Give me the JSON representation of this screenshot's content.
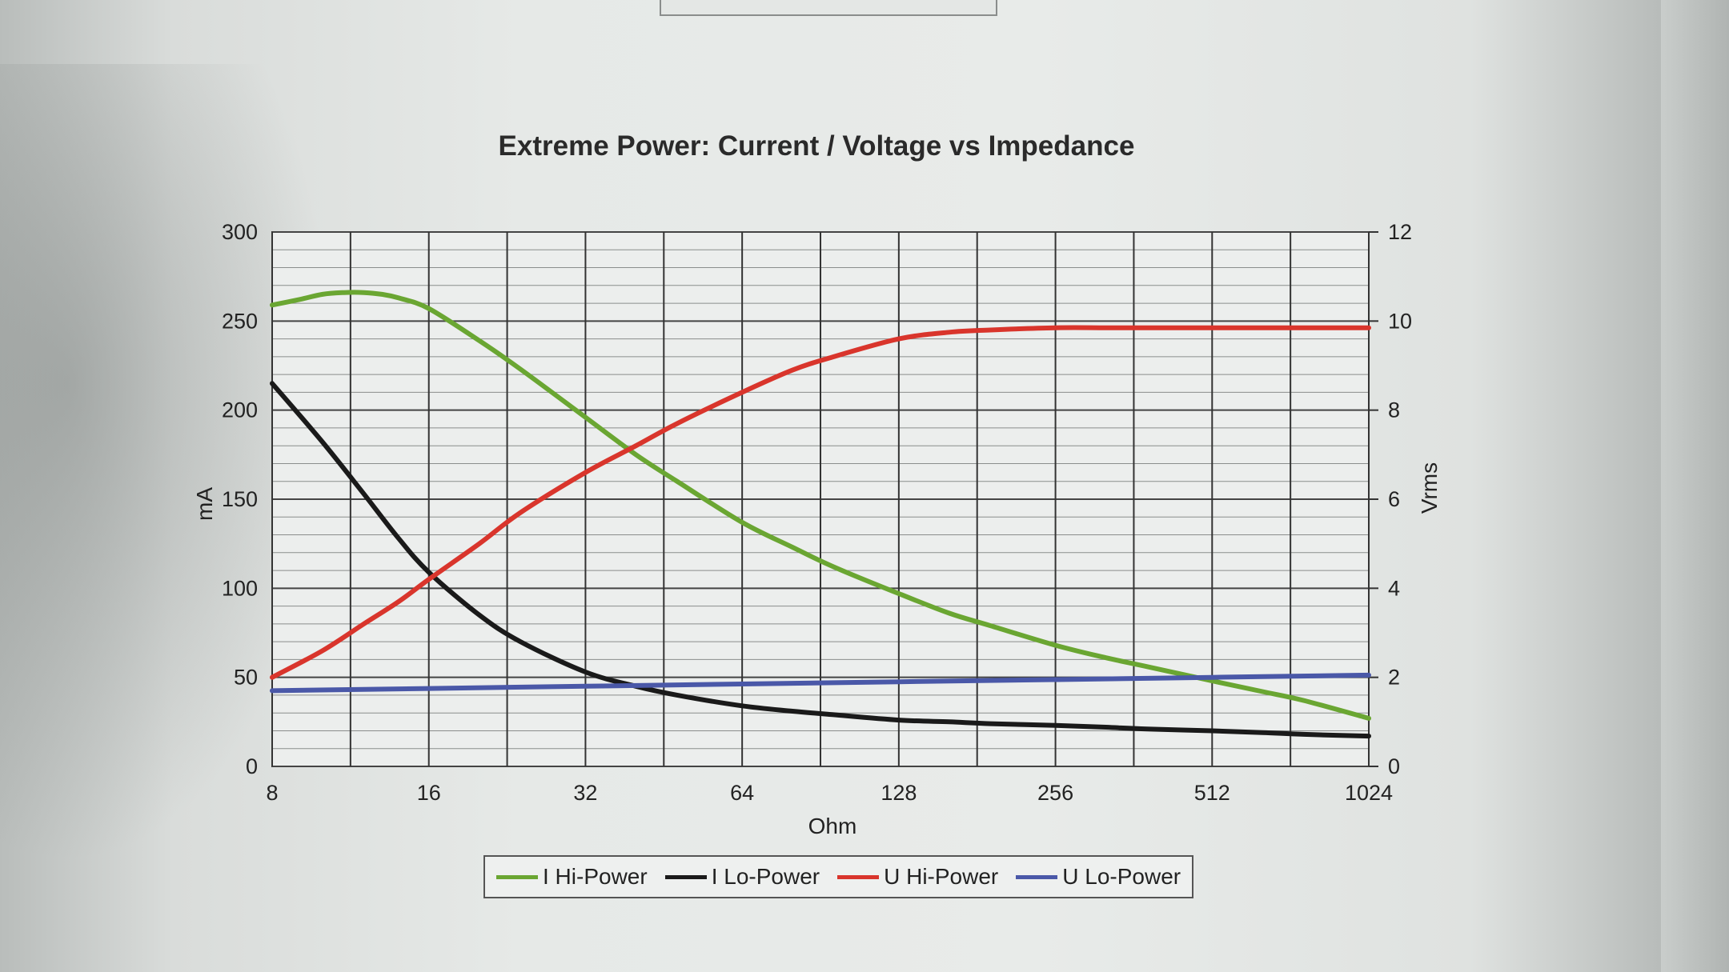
{
  "chart_data": {
    "type": "line",
    "title": "Extreme Power: Current / Voltage vs Impedance",
    "xlabel": "Ohm",
    "ylabel": "mA",
    "y2label": "Vrms",
    "x_scale": "log2",
    "x_ticks": [
      8,
      16,
      32,
      64,
      128,
      256,
      512,
      1024
    ],
    "xlim": [
      8,
      1024
    ],
    "ylim": [
      0,
      300
    ],
    "y_ticks": [
      0,
      50,
      100,
      150,
      200,
      250,
      300
    ],
    "y2lim": [
      0,
      12
    ],
    "y2_ticks": [
      0,
      2,
      4,
      6,
      8,
      10,
      12
    ],
    "grid": true,
    "legend_position": "bottom",
    "series": [
      {
        "name": "I Hi-Power",
        "axis": "left",
        "color": "#6aa632",
        "x": [
          8,
          9,
          10,
          11,
          12,
          13,
          14,
          16,
          20,
          24,
          32,
          40,
          48,
          64,
          80,
          96,
          128,
          160,
          192,
          256,
          320,
          384,
          512,
          640,
          768,
          1024
        ],
        "y": [
          259,
          262,
          265,
          266,
          266,
          265,
          263,
          257,
          239,
          223,
          196,
          175,
          160,
          137,
          123,
          112,
          97,
          86,
          79,
          68,
          61,
          56,
          48,
          42,
          37,
          27
        ]
      },
      {
        "name": "I Lo-Power",
        "axis": "left",
        "color": "#1a1a1a",
        "x": [
          8,
          10,
          12,
          14,
          16,
          20,
          24,
          32,
          40,
          48,
          64,
          80,
          96,
          128,
          160,
          192,
          256,
          320,
          384,
          512,
          640,
          768,
          1024
        ],
        "y": [
          215,
          182,
          153,
          128,
          109,
          85,
          70,
          53,
          45,
          40,
          34,
          31,
          29,
          26,
          25,
          24,
          23,
          22,
          21,
          20,
          19,
          18,
          17
        ]
      },
      {
        "name": "U Hi-Power",
        "axis": "right",
        "color": "#d9352c",
        "x": [
          8,
          10,
          12,
          14,
          16,
          20,
          24,
          32,
          40,
          48,
          64,
          80,
          96,
          128,
          160,
          192,
          256,
          320,
          384,
          512,
          640,
          768,
          1024
        ],
        "y": [
          2.0,
          2.6,
          3.2,
          3.7,
          4.2,
          5.0,
          5.7,
          6.6,
          7.2,
          7.7,
          8.4,
          8.9,
          9.2,
          9.6,
          9.75,
          9.8,
          9.85,
          9.85,
          9.85,
          9.85,
          9.85,
          9.85,
          9.85
        ]
      },
      {
        "name": "U Lo-Power",
        "axis": "right",
        "color": "#4a58a8",
        "x": [
          8,
          16,
          32,
          64,
          128,
          256,
          512,
          1024
        ],
        "y": [
          1.7,
          1.75,
          1.8,
          1.85,
          1.9,
          1.95,
          2.0,
          2.05
        ]
      }
    ]
  }
}
